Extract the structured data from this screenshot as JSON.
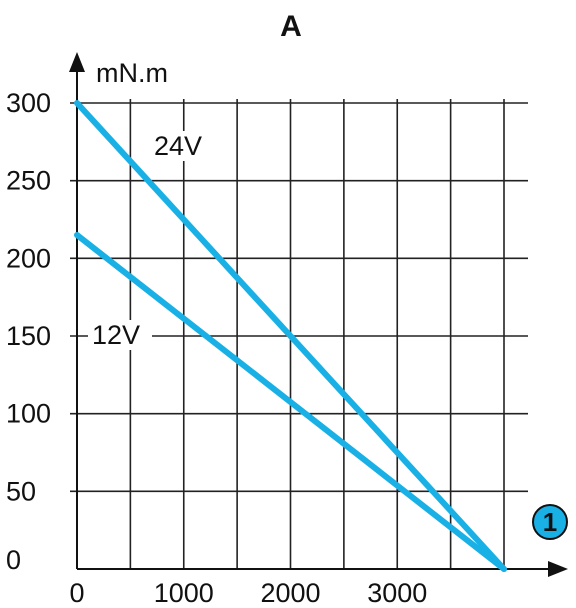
{
  "chart_data": {
    "type": "line",
    "title": "A",
    "ylabel": "mN.m",
    "xlabel": "",
    "x_axis_marker": "1",
    "xlim": [
      0,
      4000
    ],
    "ylim": [
      0,
      300
    ],
    "x_ticks": [
      0,
      1000,
      2000,
      3000
    ],
    "y_ticks": [
      0,
      50,
      100,
      150,
      200,
      250,
      300
    ],
    "grid": true,
    "line_color": "#19b0e6",
    "marker_color": "#19b0e6",
    "series": [
      {
        "name": "24V",
        "x": [
          0,
          4000
        ],
        "y": [
          300,
          0
        ]
      },
      {
        "name": "12V",
        "x": [
          0,
          4000
        ],
        "y": [
          215,
          0
        ]
      }
    ]
  }
}
